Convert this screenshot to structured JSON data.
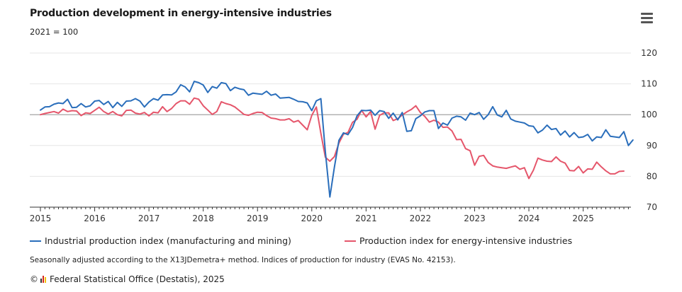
{
  "header": {
    "title": "Production development in energy-intensive industries",
    "subtitle": "2021 = 100",
    "menu_icon": "hamburger-menu-icon"
  },
  "legend": [
    {
      "name": "Industrial production index (manufacturing and mining)",
      "color": "#2a6ebb"
    },
    {
      "name": "Production index for energy-intensive industries",
      "color": "#e5566b"
    }
  ],
  "footer": {
    "note": "Seasonally adjusted according to the X13JDemetra+ method. Indices of production for industry (EVAS No. 42153).",
    "copyright_symbol": "©",
    "source": "Federal Statistical Office (Destatis), 2025",
    "logo_colors": [
      "#333333",
      "#d4271c",
      "#f2c200"
    ]
  },
  "chart_data": {
    "type": "line",
    "title": "Production development in energy-intensive industries",
    "ylabel": "2021 = 100",
    "xlabel": "",
    "ylim": [
      70,
      120
    ],
    "yticks": [
      70,
      80,
      90,
      100,
      110,
      120
    ],
    "reference_line": 100,
    "x_start": "2015-01",
    "frequency": "monthly",
    "xticks": [
      "2015",
      "2016",
      "2017",
      "2018",
      "2019",
      "2020",
      "2021",
      "2022",
      "2023",
      "2024",
      "2025"
    ],
    "series": [
      {
        "name": "Industrial production index (manufacturing and mining)",
        "color": "#2a6ebb",
        "values": [
          101.5,
          102.5,
          102.6,
          103.4,
          103.8,
          103.6,
          105.0,
          102.3,
          102.4,
          103.6,
          102.5,
          102.9,
          104.4,
          104.6,
          103.3,
          104.3,
          102.3,
          104.0,
          102.7,
          104.4,
          104.5,
          105.2,
          104.4,
          102.5,
          104.1,
          105.2,
          104.7,
          106.4,
          106.5,
          106.4,
          107.4,
          109.7,
          109.0,
          107.4,
          110.8,
          110.4,
          109.6,
          107.2,
          109.1,
          108.6,
          110.4,
          110.1,
          107.8,
          108.9,
          108.4,
          108.1,
          106.3,
          107.0,
          106.8,
          106.6,
          107.6,
          106.3,
          106.7,
          105.4,
          105.5,
          105.6,
          105.0,
          104.3,
          104.2,
          103.8,
          101.3,
          104.5,
          105.2,
          88.0,
          73.3,
          83.0,
          91.7,
          94.1,
          93.5,
          95.8,
          99.6,
          101.4,
          101.3,
          101.5,
          99.8,
          101.3,
          101.0,
          98.8,
          100.5,
          98.3,
          100.7,
          94.6,
          94.8,
          98.7,
          99.6,
          100.9,
          101.3,
          101.3,
          95.5,
          97.3,
          96.6,
          98.9,
          99.5,
          99.3,
          98.2,
          100.5,
          100.0,
          100.7,
          98.5,
          100.0,
          102.6,
          99.9,
          99.3,
          101.4,
          98.6,
          97.9,
          97.6,
          97.3,
          96.4,
          96.2,
          94.1,
          95.0,
          96.6,
          95.2,
          95.5,
          93.4,
          94.7,
          92.8,
          94.2,
          92.6,
          92.8,
          93.6,
          91.5,
          92.8,
          92.6,
          95.1,
          93.0,
          92.8,
          92.6,
          94.5,
          90.0,
          91.8
        ]
      },
      {
        "name": "Production index for energy-intensive industries",
        "color": "#e5566b",
        "values": [
          100.0,
          100.4,
          100.7,
          101.0,
          100.5,
          101.8,
          101.0,
          101.3,
          101.2,
          99.7,
          100.6,
          100.4,
          101.4,
          102.4,
          101.0,
          100.2,
          101.0,
          100.0,
          99.6,
          101.4,
          101.5,
          100.5,
          100.2,
          100.7,
          99.6,
          100.8,
          100.6,
          102.6,
          101.0,
          102.0,
          103.6,
          104.5,
          104.5,
          103.4,
          105.4,
          105.0,
          102.9,
          101.5,
          100.1,
          101.0,
          104.2,
          103.6,
          103.2,
          102.5,
          101.3,
          100.1,
          99.8,
          100.4,
          100.8,
          100.7,
          99.7,
          98.9,
          98.7,
          98.3,
          98.3,
          98.7,
          97.6,
          98.1,
          96.6,
          95.1,
          99.8,
          102.5,
          94.0,
          86.2,
          84.9,
          86.4,
          90.8,
          93.7,
          94.2,
          97.5,
          98.5,
          101.4,
          99.3,
          101.0,
          95.3,
          99.8,
          100.6,
          100.6,
          98.1,
          98.7,
          99.9,
          100.9,
          101.7,
          102.9,
          100.7,
          99.4,
          97.6,
          98.2,
          97.6,
          95.9,
          96.0,
          94.7,
          91.9,
          92.0,
          89.0,
          88.3,
          83.6,
          86.5,
          86.8,
          84.5,
          83.4,
          83.0,
          82.8,
          82.6,
          83.0,
          83.4,
          82.3,
          82.8,
          79.3,
          82.0,
          85.9,
          85.3,
          84.9,
          84.8,
          86.3,
          84.9,
          84.3,
          81.9,
          81.8,
          83.2,
          81.1,
          82.4,
          82.3,
          84.6,
          83.1,
          81.8,
          80.8,
          80.8,
          81.6,
          81.7
        ]
      }
    ]
  }
}
